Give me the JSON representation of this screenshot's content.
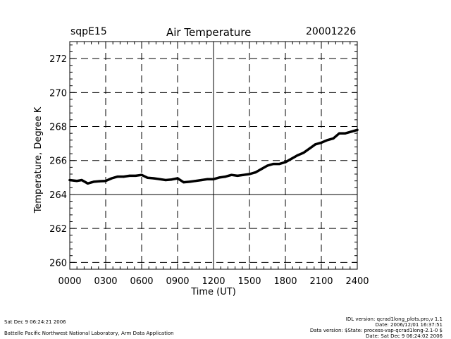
{
  "header": {
    "site": "sqpE15",
    "title": "Air Temperature",
    "date": "20001226"
  },
  "chart_data": {
    "type": "line",
    "title": "Air Temperature",
    "xlabel": "Time (UT)",
    "ylabel": "Temperature, Degree K",
    "xlim": [
      0,
      2400
    ],
    "ylim": [
      259.6,
      273.0
    ],
    "x_ticks": [
      0,
      300,
      600,
      900,
      1200,
      1500,
      1800,
      2100,
      2400
    ],
    "x_tick_labels": [
      "0000",
      "0300",
      "0600",
      "0900",
      "1200",
      "1500",
      "1800",
      "2100",
      "2400"
    ],
    "y_ticks": [
      260,
      262,
      264,
      266,
      268,
      270,
      272
    ],
    "y_tick_labels": [
      "260",
      "262",
      "264",
      "266",
      "268",
      "270",
      "272"
    ],
    "solid_lines": {
      "x": 1200,
      "y": 264
    },
    "grid": true,
    "series": [
      {
        "name": "Air Temperature",
        "x": [
          0,
          60,
          100,
          150,
          200,
          250,
          300,
          350,
          400,
          450,
          500,
          550,
          600,
          650,
          700,
          750,
          800,
          850,
          900,
          950,
          1000,
          1050,
          1100,
          1150,
          1200,
          1250,
          1300,
          1350,
          1400,
          1450,
          1500,
          1550,
          1600,
          1650,
          1700,
          1750,
          1800,
          1850,
          1900,
          1950,
          2000,
          2050,
          2100,
          2150,
          2200,
          2250,
          2300,
          2350,
          2400
        ],
        "values": [
          264.85,
          264.8,
          264.85,
          264.65,
          264.75,
          264.78,
          264.8,
          264.95,
          265.05,
          265.05,
          265.1,
          265.1,
          265.15,
          264.98,
          264.95,
          264.9,
          264.85,
          264.88,
          264.95,
          264.72,
          264.75,
          264.8,
          264.85,
          264.9,
          264.9,
          265.0,
          265.05,
          265.15,
          265.1,
          265.15,
          265.2,
          265.3,
          265.5,
          265.7,
          265.8,
          265.8,
          265.9,
          266.1,
          266.3,
          266.45,
          266.7,
          266.95,
          267.05,
          267.2,
          267.3,
          267.6,
          267.6,
          267.7,
          267.8
        ]
      }
    ]
  },
  "footer": {
    "left_line1": "Sat Dec  9 06:24:21 2006",
    "left_line2": "Battelle Pacific Northwest National Laboratory, Arm Data Application",
    "right_line1": "IDL version: qcrad1long_plots.pro,v 1.1",
    "right_line2": "Date: 2006/12/01 16:37:51",
    "right_line3": "Data version: $State: process-vap-qcrad1long-2.1-0 $",
    "right_line4": "Date: Sat Dec  9 06:24:02 2006"
  }
}
